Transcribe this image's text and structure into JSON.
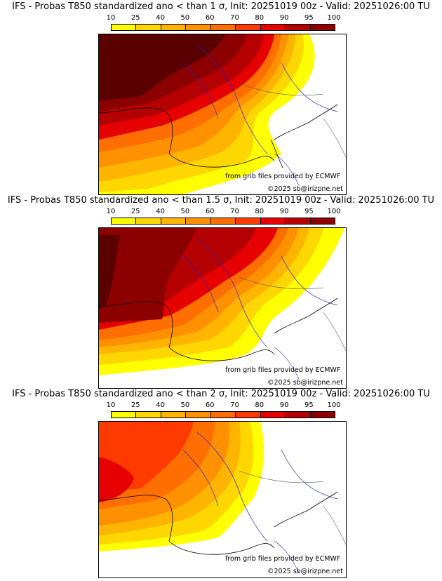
{
  "colorbar": {
    "ticks": [
      "10",
      "25",
      "40",
      "50",
      "60",
      "70",
      "80",
      "90",
      "95",
      "100"
    ],
    "colors": [
      "#ffff00",
      "#ffd700",
      "#ffb400",
      "#ff9000",
      "#ff6e00",
      "#ff3a00",
      "#e60000",
      "#b40000",
      "#8c0000",
      "#5a0000"
    ]
  },
  "panels": [
    {
      "title": "IFS - Probas T850  standardized ano < than 1 σ, Init: 20251019 00z - Valid: 20251026:00 TU",
      "credit_source": "from grib files provided by ECMWF",
      "credit_copyright": "©2025 sb@irizpne.net"
    },
    {
      "title": "IFS - Probas T850  standardized ano < than 1.5 σ, Init: 20251019 00z - Valid: 20251026:00 TU",
      "credit_source": "from grib files provided by ECMWF",
      "credit_copyright": "©2025 sb@irizpne.net"
    },
    {
      "title": "IFS - Probas T850  standardized ano < than 2 σ, Init: 20251019 00z - Valid: 20251026:00 TU",
      "credit_source": "from grib files provided by ECMWF",
      "credit_copyright": "©2025 sb@irizpne.net"
    }
  ],
  "icons": {
    "map": "probability-map"
  }
}
